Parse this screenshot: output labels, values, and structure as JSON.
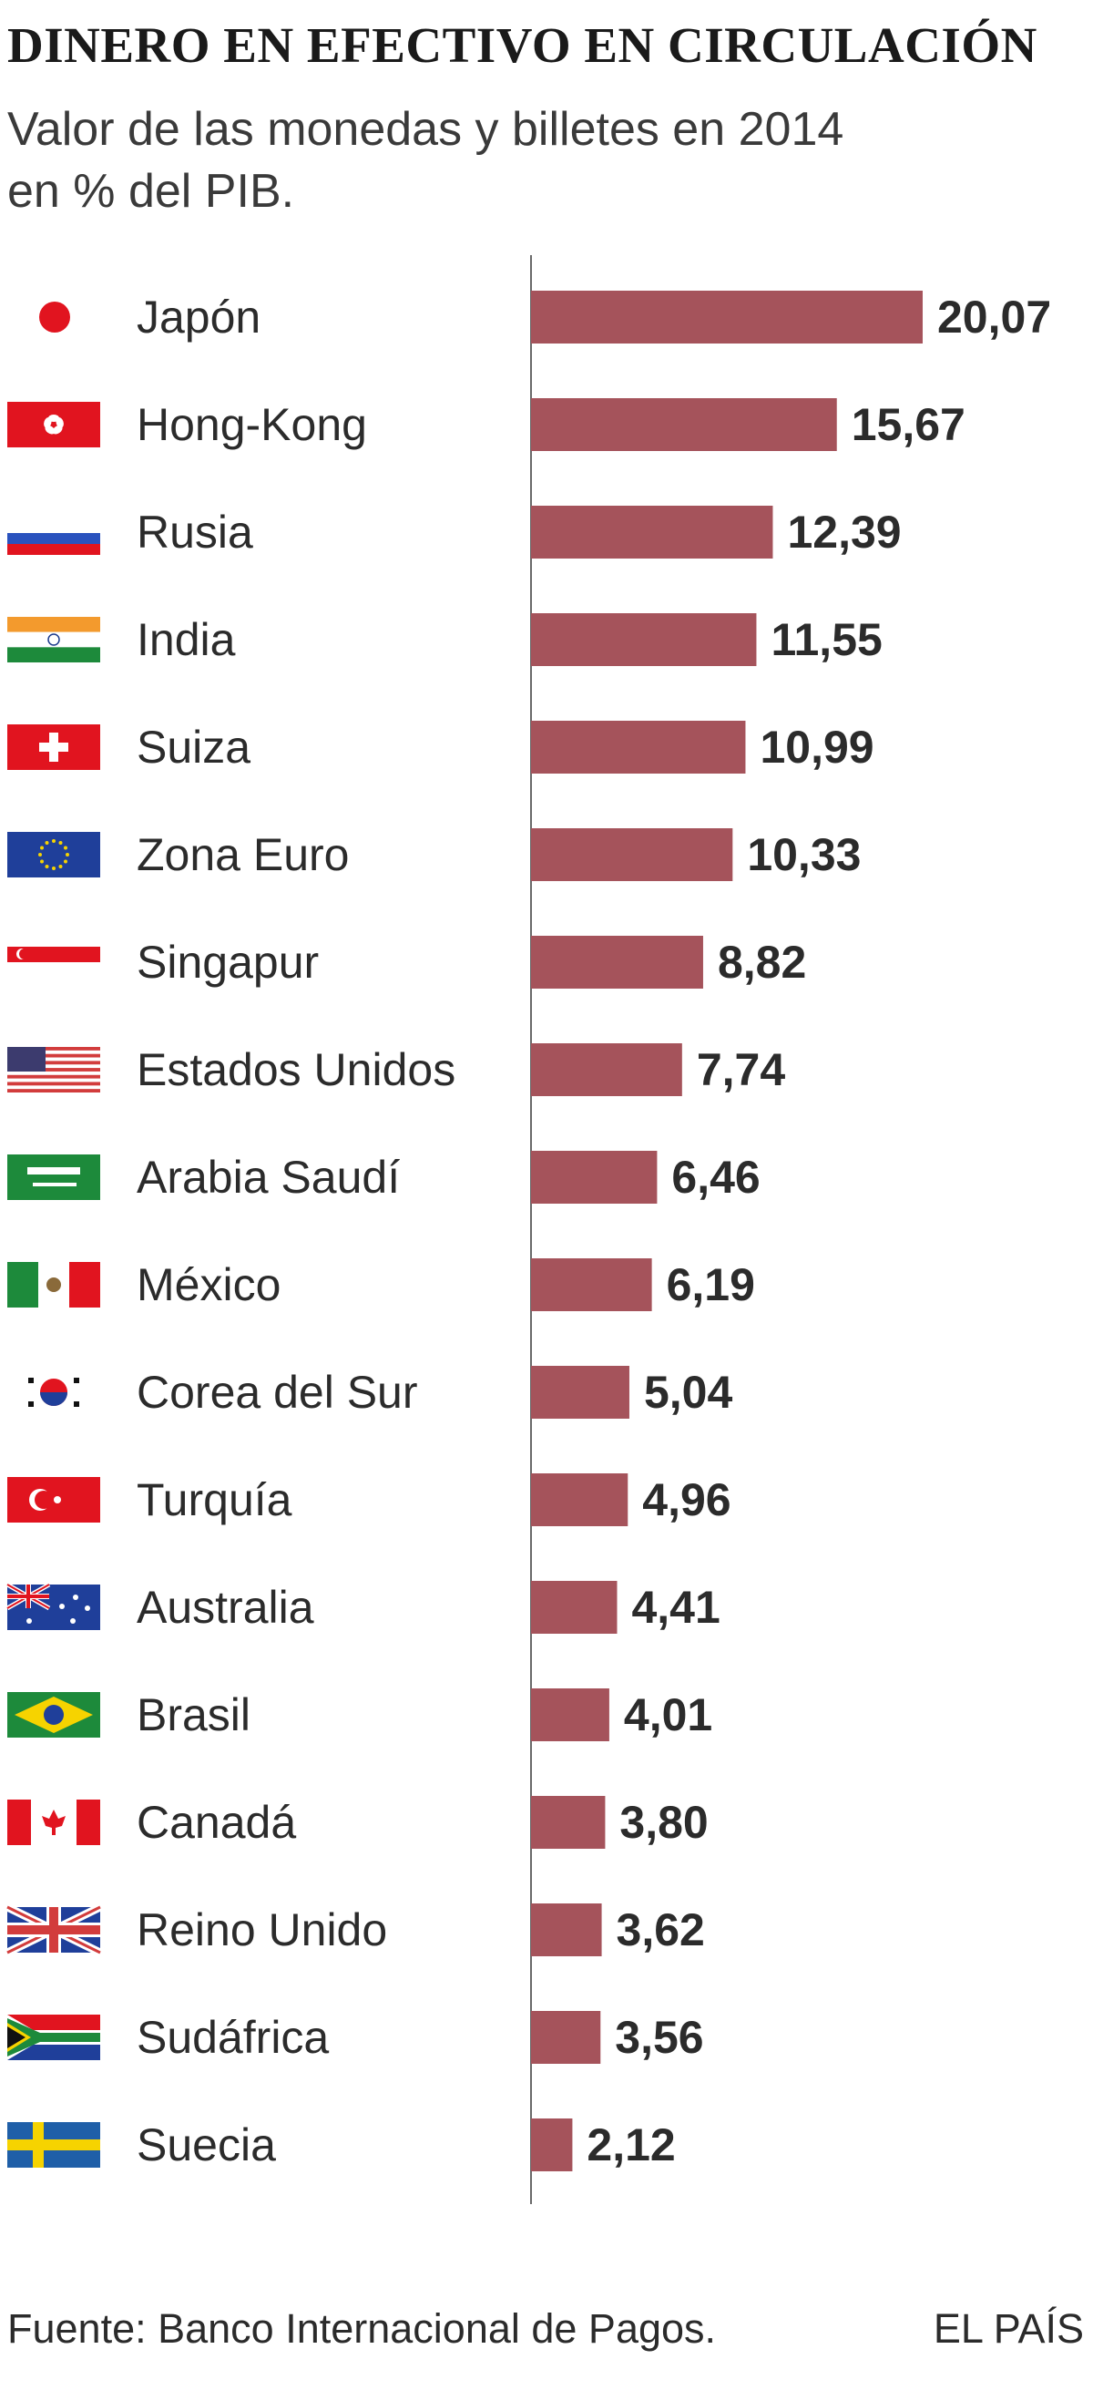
{
  "colors": {
    "bar": "#a5535b",
    "axis": "#6a6a6a",
    "text": "#2b2b2b"
  },
  "chart_data": {
    "type": "bar",
    "orientation": "horizontal",
    "title": "DINERO EN EFECTIVO EN CIRCULACIÓN",
    "subtitle": "Valor de las monedas y billetes en 2014\nen % del PIB.",
    "categories": [
      "Japón",
      "Hong-Kong",
      "Rusia",
      "India",
      "Suiza",
      "Zona Euro",
      "Singapur",
      "Estados Unidos",
      "Arabia Saudí",
      "México",
      "Corea del Sur",
      "Turquía",
      "Australia",
      "Brasil",
      "Canadá",
      "Reino Unido",
      "Sudáfrica",
      "Suecia"
    ],
    "values": [
      20.07,
      15.67,
      12.39,
      11.55,
      10.99,
      10.33,
      8.82,
      7.74,
      6.46,
      6.19,
      5.04,
      4.96,
      4.41,
      4.01,
      3.8,
      3.62,
      3.56,
      2.12
    ],
    "value_labels": [
      "20,07",
      "15,67",
      "12,39",
      "11,55",
      "10,99",
      "10,33",
      "8,82",
      "7,74",
      "6,46",
      "6,19",
      "5,04",
      "4,96",
      "4,41",
      "4,01",
      "3,80",
      "3,62",
      "3,56",
      "2,12"
    ],
    "flag_icons": [
      "flag-japan-icon",
      "flag-hong-kong-icon",
      "flag-russia-icon",
      "flag-india-icon",
      "flag-switzerland-icon",
      "flag-eu-icon",
      "flag-singapore-icon",
      "flag-usa-icon",
      "flag-saudi-arabia-icon",
      "flag-mexico-icon",
      "flag-south-korea-icon",
      "flag-turkey-icon",
      "flag-australia-icon",
      "flag-brazil-icon",
      "flag-canada-icon",
      "flag-uk-icon",
      "flag-south-africa-icon",
      "flag-sweden-icon"
    ],
    "xlim": [
      0,
      20.07
    ],
    "grid": false,
    "legend": "none"
  },
  "footer": {
    "source": "Fuente: Banco Internacional de Pagos.",
    "brand": "EL PAÍS"
  }
}
